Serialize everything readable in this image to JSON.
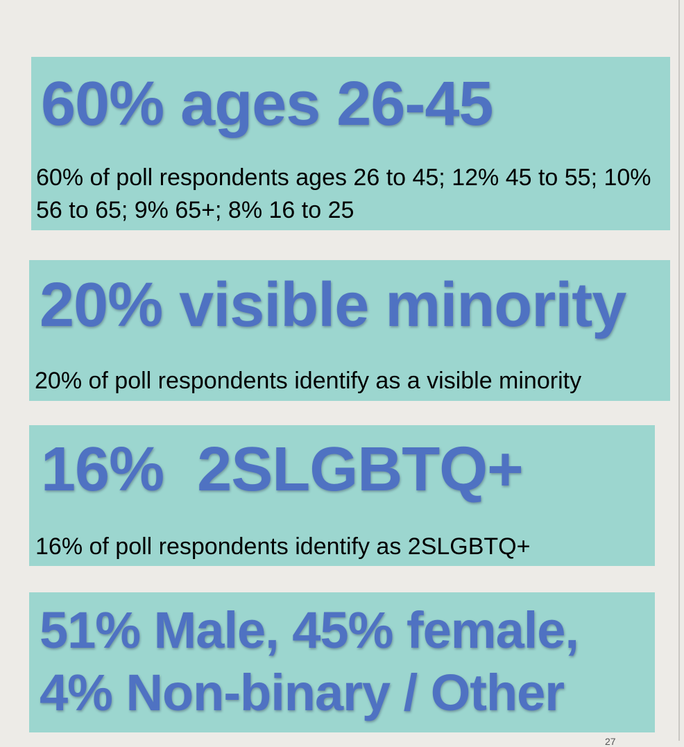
{
  "cards": [
    {
      "headline": "60% ages 26-45",
      "description": "60% of poll respondents ages 26 to 45; 12% 45 to 55; 10% 56 to 65; 9% 65+; 8% 16 to 25"
    },
    {
      "headline": "20% visible minority",
      "description": "20% of poll respondents identify as a visible minority"
    },
    {
      "headline": "16%  2SLGBTQ+",
      "description": "16% of poll respondents identify as 2SLGBTQ+"
    },
    {
      "headline": "51%  Male, 45% female,\n4% Non-binary / Other"
    }
  ],
  "colors": {
    "background": "#edebe7",
    "card": "#9cd6cf",
    "headline": "#4f72c2",
    "body_text": "#000000"
  },
  "page_number": "27"
}
